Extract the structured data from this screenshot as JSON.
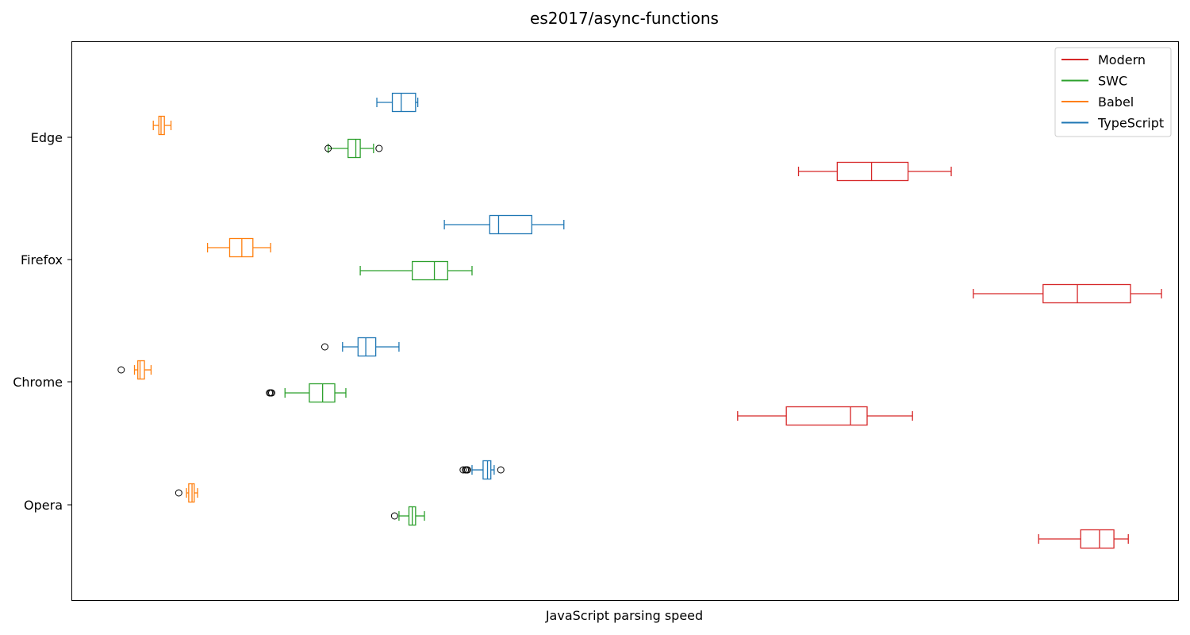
{
  "chart_data": {
    "type": "boxplot",
    "orientation": "horizontal",
    "title": "es2017/async-functions",
    "xlabel": "JavaScript parsing speed",
    "ylabel": "",
    "x_ticks_shown": false,
    "xlim": [
      0,
      100
    ],
    "grid": false,
    "legend_position": "top-right",
    "categories": [
      "Edge",
      "Firefox",
      "Chrome",
      "Opera"
    ],
    "series": [
      {
        "name": "TypeScript",
        "color": "#1f77b4",
        "boxes": [
          {
            "category": "Edge",
            "whislo": 27.6,
            "q1": 29.0,
            "med": 29.8,
            "q3": 31.1,
            "whishi": 31.3,
            "fliers": []
          },
          {
            "category": "Firefox",
            "whislo": 33.7,
            "q1": 37.8,
            "med": 38.6,
            "q3": 41.6,
            "whishi": 44.5,
            "fliers": []
          },
          {
            "category": "Chrome",
            "whislo": 24.5,
            "q1": 25.9,
            "med": 26.6,
            "q3": 27.5,
            "whishi": 29.6,
            "fliers": [
              22.9
            ]
          },
          {
            "category": "Opera",
            "whislo": 36.2,
            "q1": 37.2,
            "med": 37.6,
            "q3": 37.9,
            "whishi": 38.2,
            "fliers": [
              35.4,
              35.6,
              35.7,
              35.8,
              38.8
            ]
          }
        ]
      },
      {
        "name": "Babel",
        "color": "#ff7f0e",
        "boxes": [
          {
            "category": "Edge",
            "whislo": 7.4,
            "q1": 7.9,
            "med": 8.1,
            "q3": 8.4,
            "whishi": 9.0,
            "fliers": []
          },
          {
            "category": "Firefox",
            "whislo": 12.3,
            "q1": 14.3,
            "med": 15.4,
            "q3": 16.4,
            "whishi": 18.0,
            "fliers": []
          },
          {
            "category": "Chrome",
            "whislo": 5.7,
            "q1": 6.0,
            "med": 6.2,
            "q3": 6.6,
            "whishi": 7.2,
            "fliers": [
              4.5
            ]
          },
          {
            "category": "Opera",
            "whislo": 10.4,
            "q1": 10.6,
            "med": 10.9,
            "q3": 11.1,
            "whishi": 11.4,
            "fliers": [
              9.7
            ]
          }
        ]
      },
      {
        "name": "SWC",
        "color": "#2ca02c",
        "boxes": [
          {
            "category": "Edge",
            "whislo": 23.2,
            "q1": 25.0,
            "med": 25.7,
            "q3": 26.1,
            "whishi": 27.3,
            "fliers": [
              23.2,
              27.8
            ]
          },
          {
            "category": "Firefox",
            "whislo": 26.1,
            "q1": 30.8,
            "med": 32.8,
            "q3": 34.0,
            "whishi": 36.2,
            "fliers": []
          },
          {
            "category": "Chrome",
            "whislo": 19.3,
            "q1": 21.5,
            "med": 22.7,
            "q3": 23.8,
            "whishi": 24.8,
            "fliers": [
              17.9,
              18.0,
              18.1
            ]
          },
          {
            "category": "Opera",
            "whislo": 29.6,
            "q1": 30.5,
            "med": 30.8,
            "q3": 31.1,
            "whishi": 31.9,
            "fliers": [
              29.2
            ]
          }
        ]
      },
      {
        "name": "Modern",
        "color": "#d62728",
        "boxes": [
          {
            "category": "Edge",
            "whislo": 65.7,
            "q1": 69.2,
            "med": 72.3,
            "q3": 75.6,
            "whishi": 79.5,
            "fliers": []
          },
          {
            "category": "Firefox",
            "whislo": 81.5,
            "q1": 87.8,
            "med": 90.9,
            "q3": 95.7,
            "whishi": 98.5,
            "fliers": []
          },
          {
            "category": "Chrome",
            "whislo": 60.2,
            "q1": 64.6,
            "med": 70.4,
            "q3": 71.9,
            "whishi": 76.0,
            "fliers": []
          },
          {
            "category": "Opera",
            "whislo": 87.4,
            "q1": 91.2,
            "med": 92.9,
            "q3": 94.2,
            "whishi": 95.5,
            "fliers": []
          }
        ]
      }
    ],
    "legend": [
      "Modern",
      "SWC",
      "Babel",
      "TypeScript"
    ]
  }
}
